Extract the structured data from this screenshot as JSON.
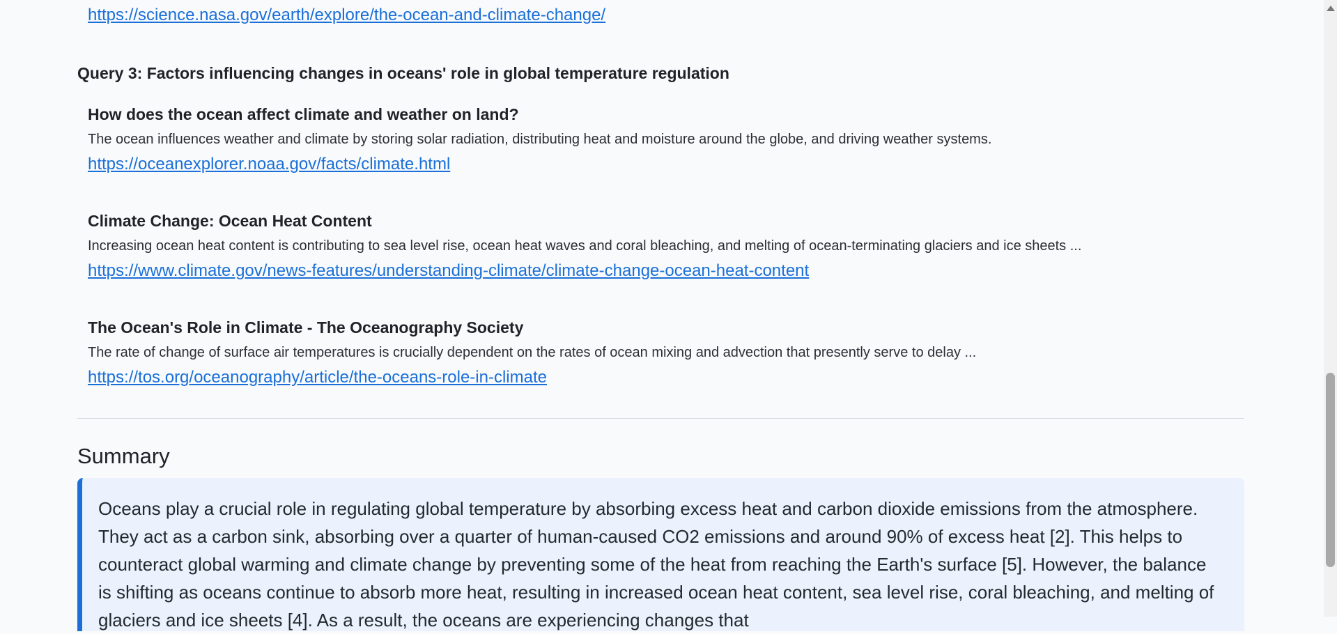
{
  "top_link": "https://science.nasa.gov/earth/explore/the-ocean-and-climate-change/",
  "query": {
    "title": "Query 3: Factors influencing changes in oceans' role in global temperature regulation"
  },
  "results": [
    {
      "title": "How does the ocean affect climate and weather on land?",
      "snippet": "The ocean influences weather and climate by storing solar radiation, distributing heat and moisture around the globe, and driving weather systems.",
      "url": "https://oceanexplorer.noaa.gov/facts/climate.html"
    },
    {
      "title": "Climate Change: Ocean Heat Content",
      "snippet": "Increasing ocean heat content is contributing to sea level rise, ocean heat waves and coral bleaching, and melting of ocean-terminating glaciers and ice sheets ...",
      "url": "https://www.climate.gov/news-features/understanding-climate/climate-change-ocean-heat-content"
    },
    {
      "title": "The Ocean's Role in Climate - The Oceanography Society",
      "snippet": "The rate of change of surface air temperatures is crucially dependent on the rates of ocean mixing and advection that presently serve to delay ...",
      "url": "https://tos.org/oceanography/article/the-oceans-role-in-climate"
    }
  ],
  "summary": {
    "heading": "Summary",
    "text": "Oceans play a crucial role in regulating global temperature by absorbing excess heat and carbon dioxide emissions from the atmosphere. They act as a carbon sink, absorbing over a quarter of human-caused CO2 emissions and around 90% of excess heat [2]. This helps to counteract global warming and climate change by preventing some of the heat from reaching the Earth's surface [5]. However, the balance is shifting as oceans continue to absorb more heat, resulting in increased ocean heat content, sea level rise, coral bleaching, and melting of glaciers and ice sheets [4]. As a result, the oceans are experiencing changes that"
  }
}
